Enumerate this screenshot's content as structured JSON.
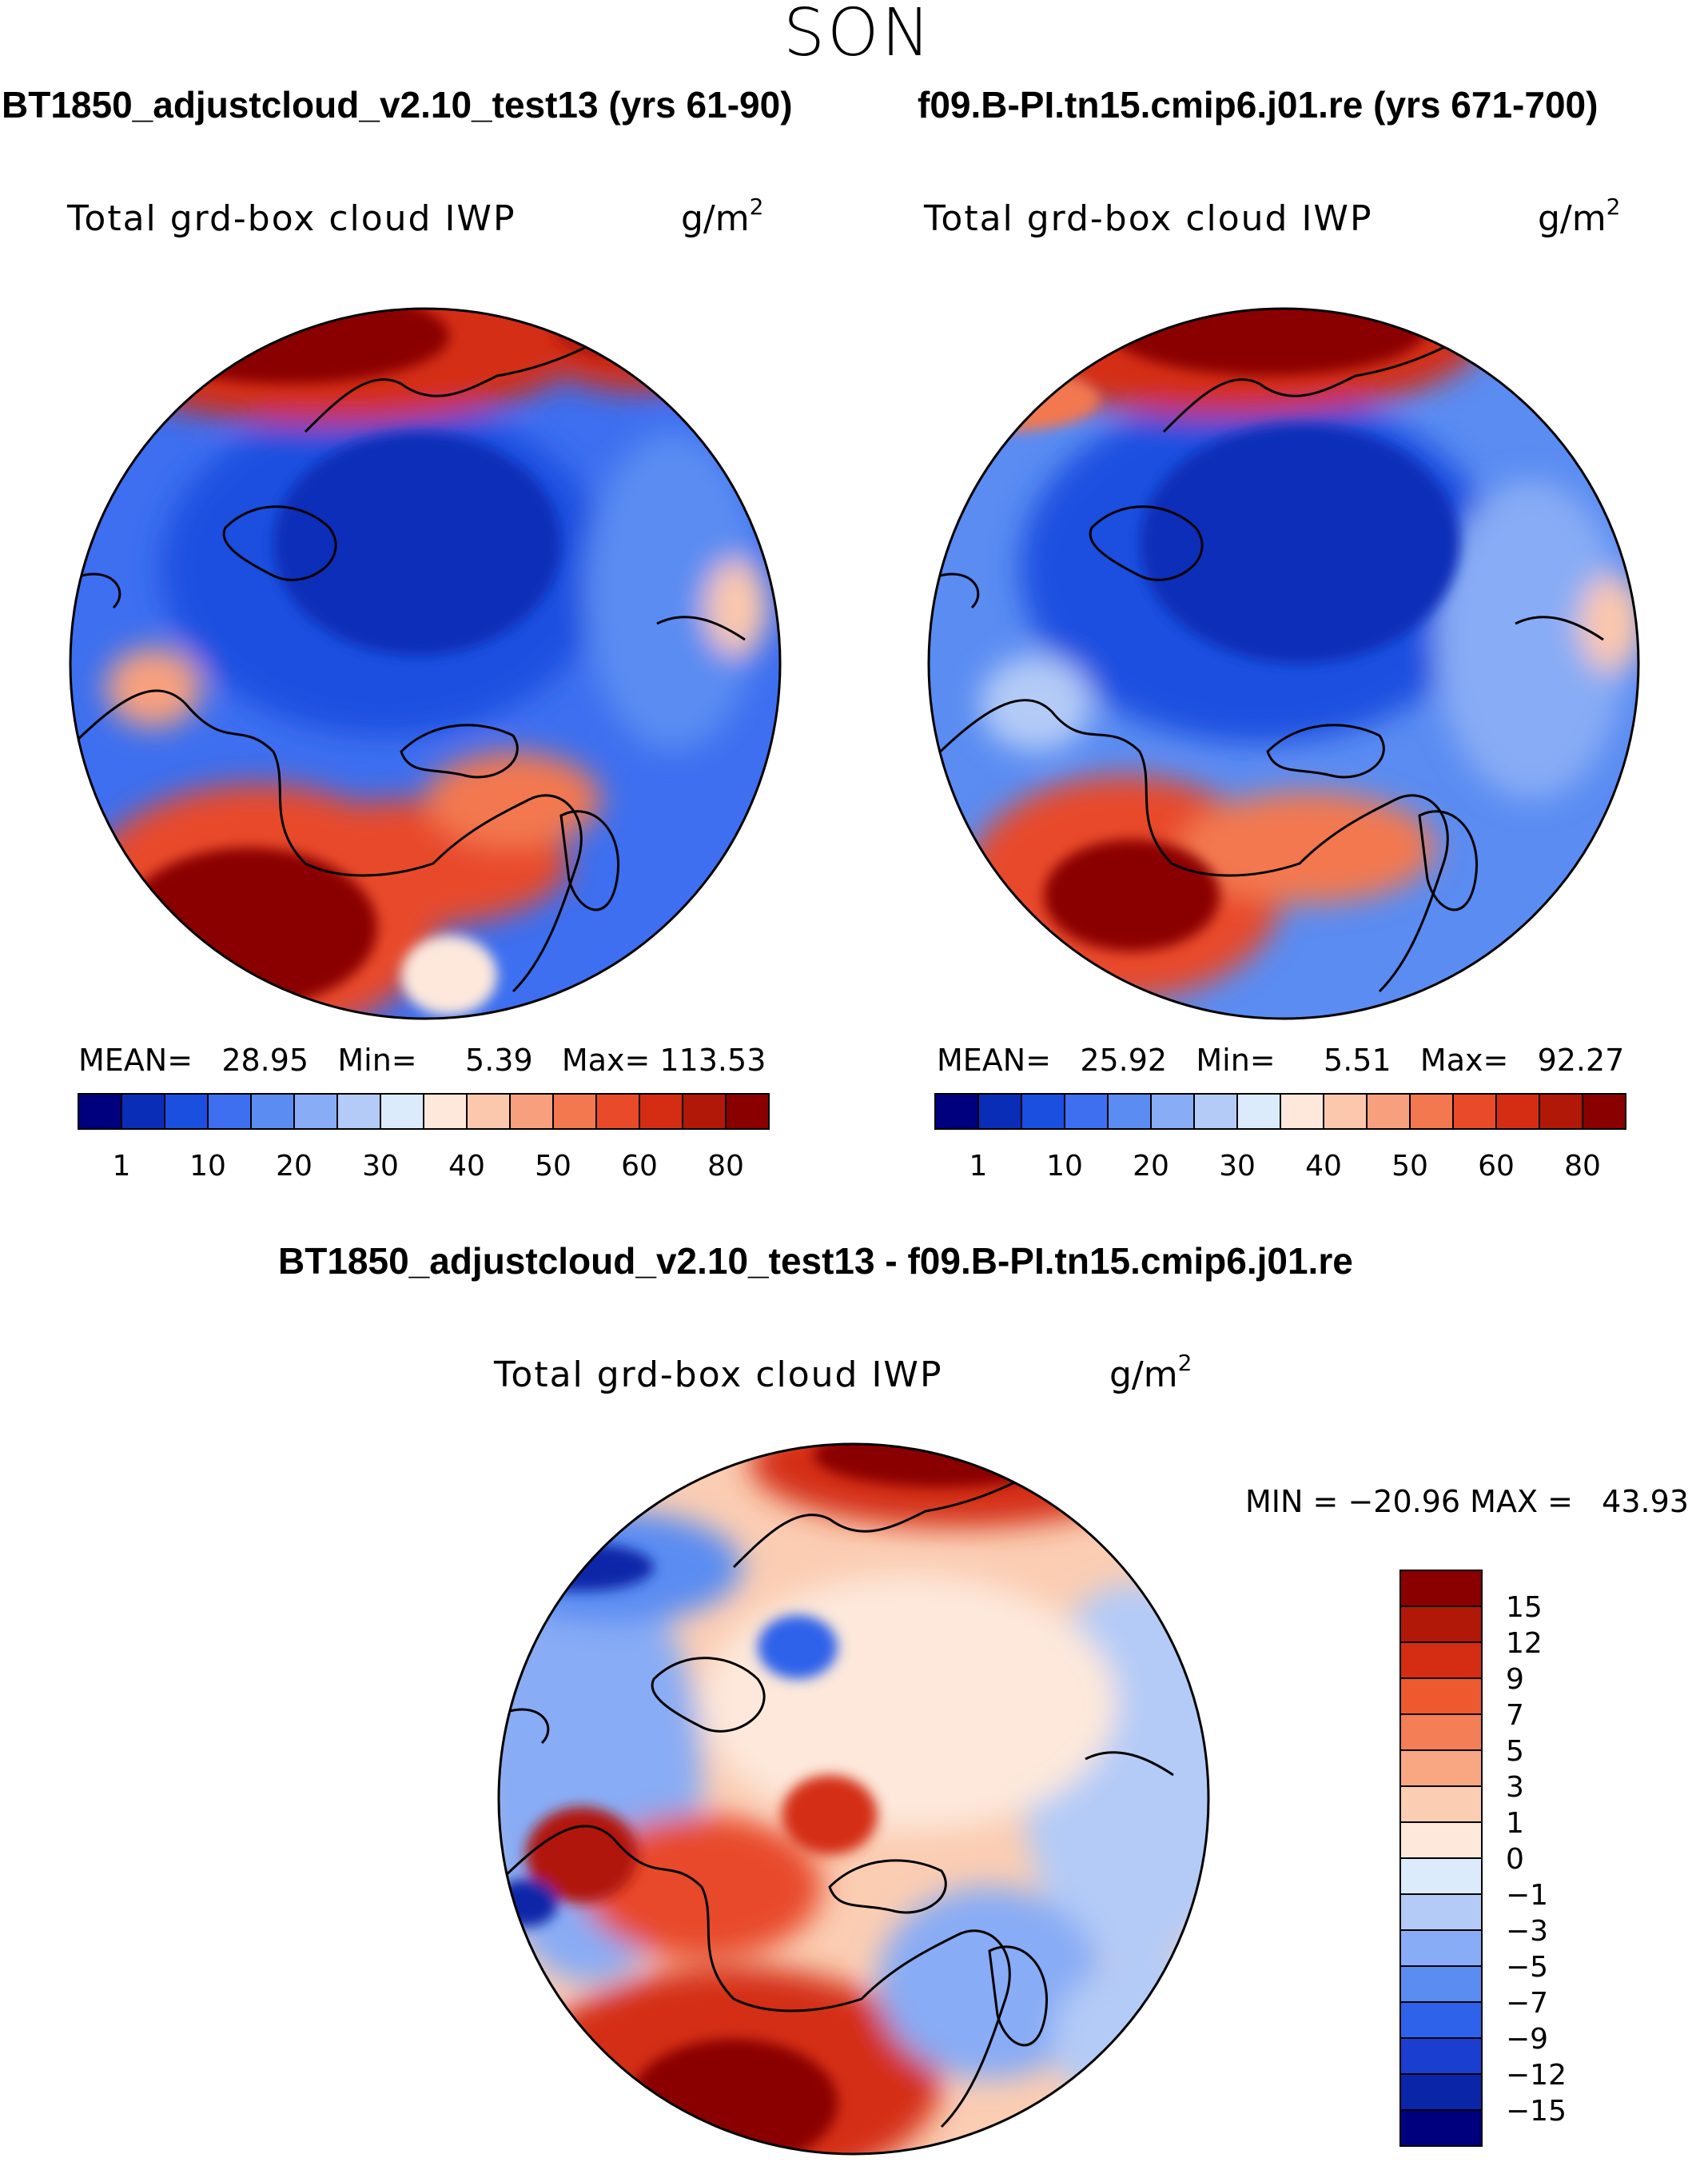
{
  "figure": {
    "season": "SON",
    "variable_label": "Total grd-box cloud IWP",
    "units_base": "g/m",
    "units_exponent": "2"
  },
  "panels": {
    "left": {
      "title": "BT1850_adjustcloud_v2.10_test13 (yrs 61-90)",
      "stats": {
        "mean_label": "MEAN=",
        "mean": "28.95",
        "min_label": "Min=",
        "min": "5.39",
        "max_label": "Max=",
        "max": "113.53"
      }
    },
    "right": {
      "title": "f09.B-PI.tn15.cmip6.j01.re (yrs 671-700)",
      "stats": {
        "mean_label": "MEAN=",
        "mean": "25.92",
        "min_label": "Min=",
        "min": "5.51",
        "max_label": "Max=",
        "max": "92.27"
      }
    },
    "diff": {
      "title": "BT1850_adjustcloud_v2.10_test13 - f09.B-PI.tn15.cmip6.j01.re",
      "stats": {
        "min_label": "MIN =",
        "min": "−20.96",
        "max_label": "MAX =",
        "max": "43.93"
      }
    }
  },
  "chart_data": [
    {
      "type": "heatmap",
      "projection": "north-polar-stereographic",
      "title": "BT1850_adjustcloud_v2.10_test13 (yrs 61-90)",
      "variable": "Total grd-box cloud IWP",
      "units": "g/m2",
      "mean": 28.95,
      "min": 5.39,
      "max": 113.53,
      "colorbar_ticks": [
        "1",
        "10",
        "20",
        "30",
        "40",
        "50",
        "60",
        "80"
      ],
      "colorbar_colors": [
        "#00007f",
        "#0a2db8",
        "#1a4fe0",
        "#3d6ff0",
        "#5a8cf2",
        "#88acf5",
        "#b4cbf7",
        "#dcebfb",
        "#fde8db",
        "#fcc8ad",
        "#f8a07e",
        "#f37850",
        "#e84a2a",
        "#d42d14",
        "#b11808",
        "#8a0000"
      ],
      "dominant_features": [
        "low IWP (blue) over Arctic basin and Siberia",
        "high IWP (red) over North Atlantic and North Pacific storm tracks"
      ]
    },
    {
      "type": "heatmap",
      "projection": "north-polar-stereographic",
      "title": "f09.B-PI.tn15.cmip6.j01.re (yrs 671-700)",
      "variable": "Total grd-box cloud IWP",
      "units": "g/m2",
      "mean": 25.92,
      "min": 5.51,
      "max": 92.27,
      "colorbar_ticks": [
        "1",
        "10",
        "20",
        "30",
        "40",
        "50",
        "60",
        "80"
      ],
      "colorbar_colors": [
        "#00007f",
        "#0a2db8",
        "#1a4fe0",
        "#3d6ff0",
        "#5a8cf2",
        "#88acf5",
        "#b4cbf7",
        "#dcebfb",
        "#fde8db",
        "#fcc8ad",
        "#f8a07e",
        "#f37850",
        "#e84a2a",
        "#d42d14",
        "#b11808",
        "#8a0000"
      ]
    },
    {
      "type": "heatmap",
      "projection": "north-polar-stereographic",
      "title": "BT1850_adjustcloud_v2.10_test13 - f09.B-PI.tn15.cmip6.j01.re",
      "variable": "Total grd-box cloud IWP",
      "units": "g/m2",
      "min": -20.96,
      "max": 43.93,
      "colorbar_ticks": [
        "15",
        "12",
        "9",
        "7",
        "5",
        "3",
        "1",
        "0",
        "−1",
        "−3",
        "−5",
        "−7",
        "−9",
        "−12",
        "−15"
      ],
      "colorbar_colors": [
        "#8a0000",
        "#b11808",
        "#d42d14",
        "#ee5a2e",
        "#f47e55",
        "#f8a782",
        "#fbcdb3",
        "#fde8db",
        "#dcebfb",
        "#b4cbf7",
        "#88acf5",
        "#5a8cf2",
        "#2f62ea",
        "#1a3fd0",
        "#0a25a8",
        "#00007f"
      ]
    }
  ]
}
